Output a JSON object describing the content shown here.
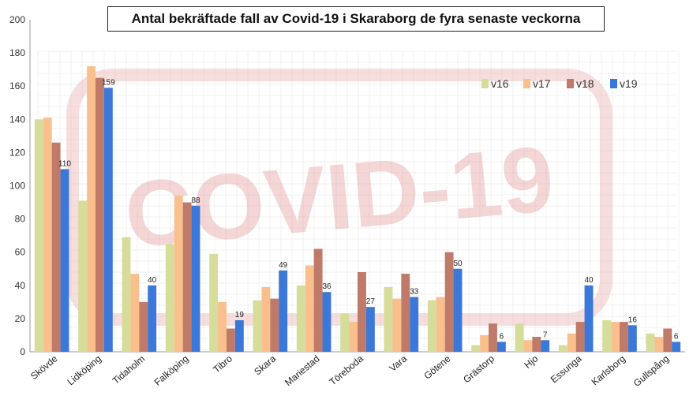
{
  "chart_data": {
    "type": "bar",
    "title": "Antal bekräftade fall av Covid-19 i Skaraborg de fyra senaste veckorna",
    "watermark": "COVID-19",
    "categories": [
      "Skövde",
      "Lidköping",
      "Tidaholm",
      "Falköping",
      "Tibro",
      "Skara",
      "Mariestad",
      "Töreboda",
      "Vara",
      "Götene",
      "Grästorp",
      "Hjo",
      "Essunga",
      "Karlsborg",
      "Gullspång"
    ],
    "series": [
      {
        "name": "v16",
        "color": "#d6dc9a",
        "values": [
          140,
          91,
          69,
          65,
          59,
          31,
          40,
          23,
          39,
          31,
          4,
          17,
          4,
          19,
          11
        ]
      },
      {
        "name": "v17",
        "color": "#f9c08e",
        "values": [
          141,
          172,
          47,
          94,
          30,
          39,
          52,
          18,
          32,
          33,
          10,
          7,
          11,
          18,
          9
        ]
      },
      {
        "name": "v18",
        "color": "#c07a69",
        "values": [
          126,
          165,
          30,
          90,
          14,
          32,
          62,
          48,
          47,
          60,
          17,
          9,
          18,
          18,
          14
        ]
      },
      {
        "name": "v19",
        "color": "#3c78d8",
        "values": [
          110,
          159,
          40,
          88,
          19,
          49,
          36,
          27,
          33,
          50,
          6,
          7,
          40,
          16,
          6
        ]
      }
    ],
    "data_labels_series": "v19",
    "ylim": [
      0,
      200
    ],
    "yticks": [
      0,
      20,
      40,
      60,
      80,
      100,
      120,
      140,
      160,
      180,
      200
    ],
    "xlabel": "",
    "ylabel": "",
    "legend": "top-right",
    "grid": false
  }
}
